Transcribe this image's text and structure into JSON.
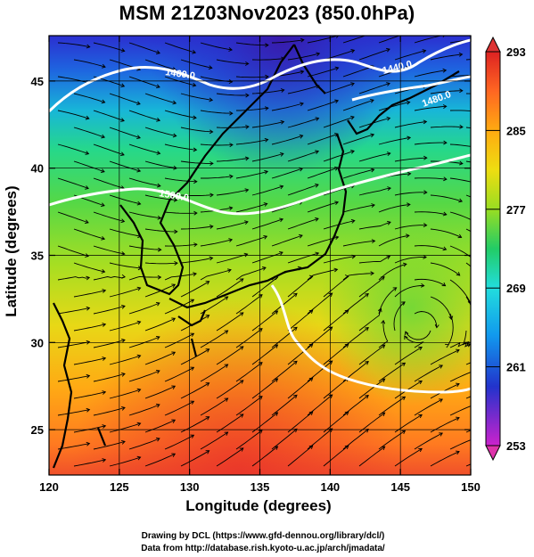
{
  "title": "MSM 21Z03Nov2023 (850.0hPa)",
  "map": {
    "xlabel": "Longitude (degrees)",
    "ylabel": "Latitude  (degrees)",
    "xticks": [
      "120",
      "125",
      "130",
      "135",
      "140",
      "145",
      "150"
    ],
    "yticks": [
      "25",
      "30",
      "35",
      "40",
      "45"
    ],
    "lon_range": [
      120,
      150
    ],
    "lat_range": [
      22.4,
      47.6
    ],
    "contours": [
      "1460.0",
      "1440.0",
      "1480.0",
      "1500.0"
    ],
    "colorbar": {
      "ticks": [
        "293",
        "285",
        "277",
        "269",
        "261",
        "253"
      ],
      "range": [
        253,
        293
      ],
      "colors": [
        "#cc22cc",
        "#2233cc",
        "#1199ee",
        "#22dddd",
        "#22cc66",
        "#99dd22",
        "#eedd11",
        "#ffaa11",
        "#ff6622",
        "#dd2222"
      ]
    }
  },
  "credits": {
    "line1": "Drawing by DCL (https://www.gfd-dennou.org/library/dcl/)",
    "line2": "Data from http://database.rish.kyoto-u.ac.jp/arch/jmadata/"
  }
}
